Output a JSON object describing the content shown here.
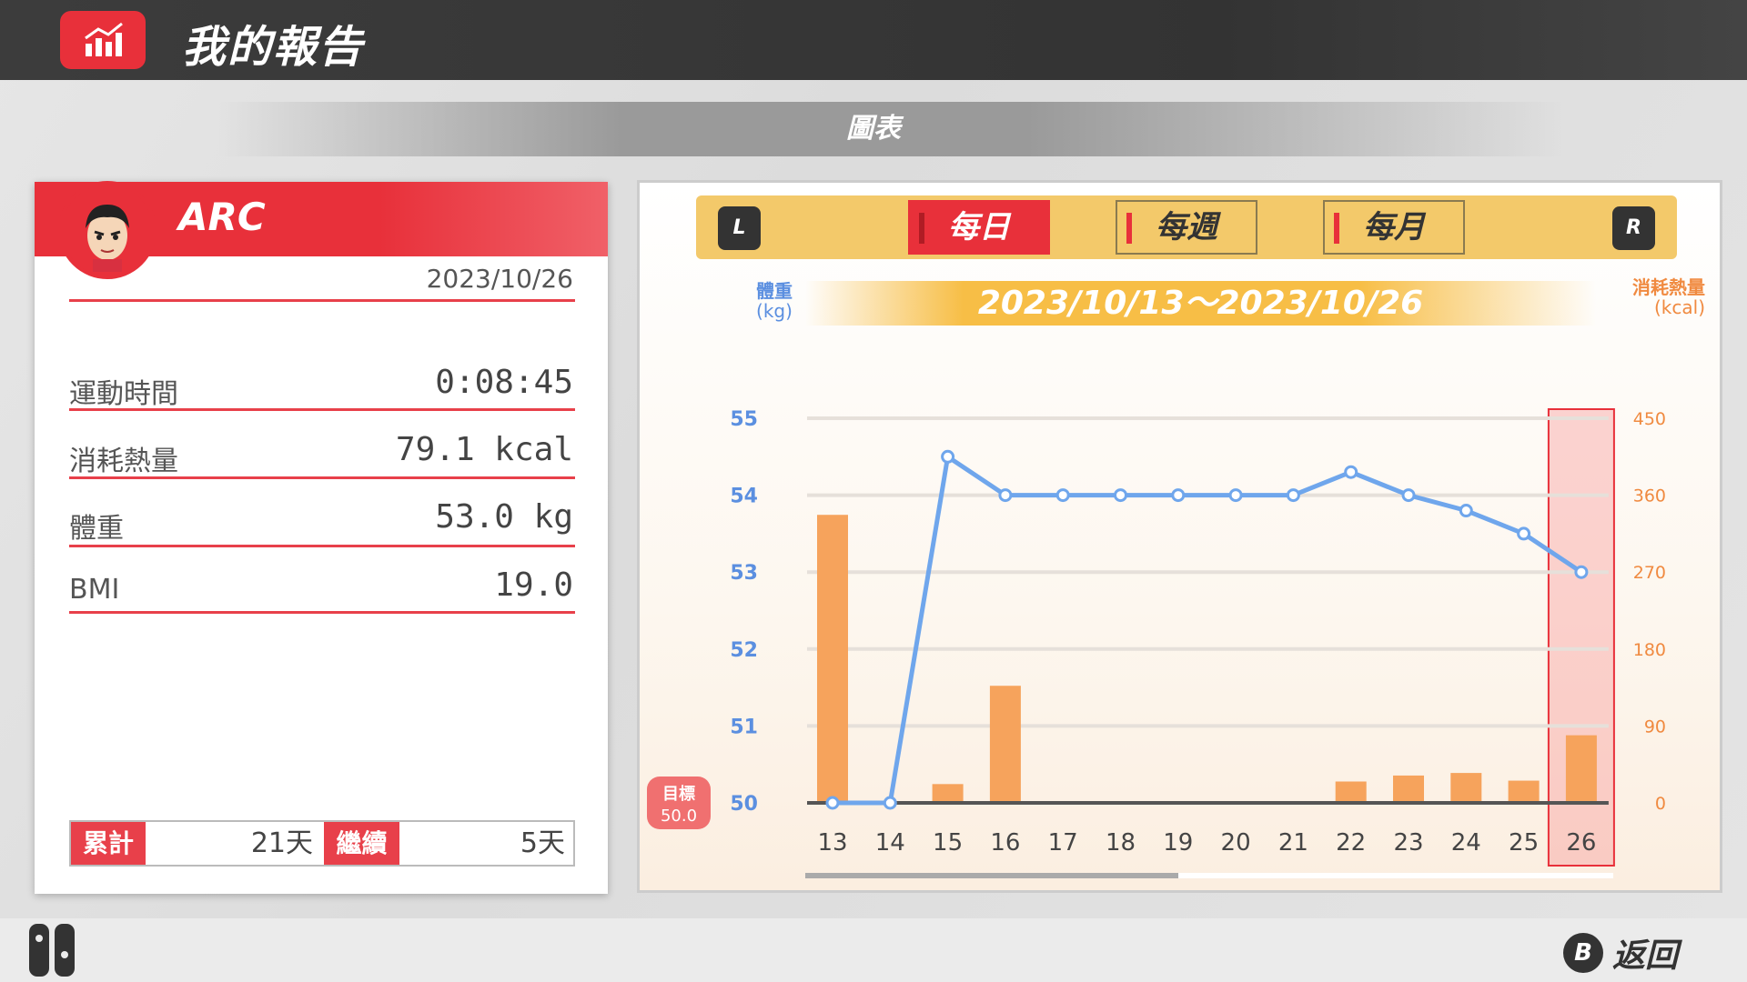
{
  "header": {
    "title": "我的報告",
    "icon": "chart-bars-icon"
  },
  "subheader": {
    "title": "圖表"
  },
  "profile": {
    "name": "ARC",
    "date": "2023/10/26",
    "rows": [
      {
        "label": "運動時間",
        "value": "0:08:45"
      },
      {
        "label": "消耗熱量",
        "value": "79.1 kcal"
      },
      {
        "label": "體重",
        "value": "53.0 kg"
      },
      {
        "label": "BMI",
        "value": "19.0"
      }
    ],
    "stats": {
      "total_label": "累計",
      "total_value": "21天",
      "streak_label": "繼續",
      "streak_value": "5天"
    }
  },
  "tabs": {
    "left_button": "L",
    "right_button": "R",
    "items": [
      {
        "label": "每日",
        "active": true
      },
      {
        "label": "每週",
        "active": false
      },
      {
        "label": "每月",
        "active": false
      }
    ]
  },
  "chart_data": {
    "type": "bar+line",
    "date_range": "2023/10/13～2023/10/26",
    "left_axis": {
      "label": "體重",
      "unit": "(kg)",
      "ticks": [
        50,
        51,
        52,
        53,
        54,
        55
      ],
      "range": [
        50,
        55
      ]
    },
    "right_axis": {
      "label": "消耗熱量",
      "unit": "(kcal)",
      "ticks": [
        0,
        90,
        180,
        270,
        360,
        450
      ],
      "range": [
        0,
        450
      ]
    },
    "categories": [
      "13",
      "14",
      "15",
      "16",
      "17",
      "18",
      "19",
      "20",
      "21",
      "22",
      "23",
      "24",
      "25",
      "26"
    ],
    "series": [
      {
        "axis": "right",
        "type": "bar",
        "values": [
          337,
          0,
          22,
          137,
          0,
          0,
          0,
          0,
          0,
          25,
          32,
          35,
          26,
          79.1
        ]
      },
      {
        "axis": "left",
        "type": "line",
        "values": [
          50.0,
          50.0,
          54.5,
          54.0,
          54.0,
          54.0,
          54.0,
          54.0,
          54.0,
          54.3,
          54.0,
          53.8,
          53.5,
          53.0
        ]
      }
    ],
    "goal": {
      "label": "目標",
      "value": "50.0"
    },
    "selected": "26",
    "colors": {
      "bar": "#f6a35c",
      "line": "#6fa6ec",
      "left_axis": "#5b8fe0",
      "right_axis": "#f08a40",
      "highlight": "#e8303a"
    }
  },
  "footer": {
    "back_button": "B",
    "back_label": "返回"
  }
}
